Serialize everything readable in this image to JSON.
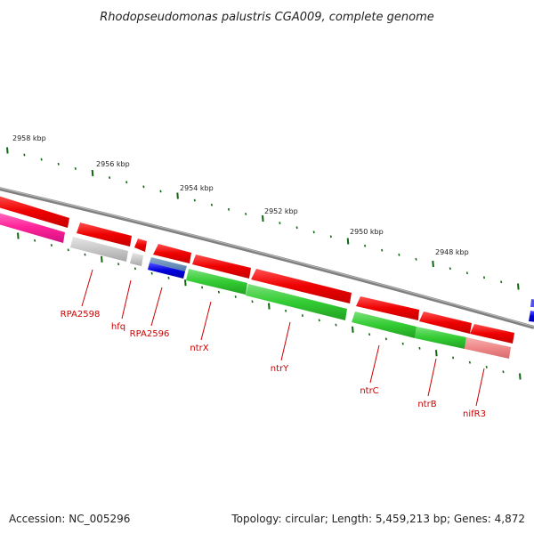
{
  "title": "Rhodopseudomonas palustris CGA009, complete genome",
  "footer": {
    "accession": "Accession: NC_005296",
    "summary": "Topology: circular; Length: 5,459,213 bp; Genes: 4,872"
  },
  "colors": {
    "forward_gene": "#ee0000",
    "reverse_gene": "#33cc33",
    "other_gene": "#c8c8c8",
    "blue_gene": "#0000dd",
    "pink_gene": "#ff2299",
    "salmon_gene": "#ee8888",
    "backbone": "#888888",
    "ticks": "#116611",
    "label": "#cc0000"
  },
  "kbp_labels": [
    "2958 kbp",
    "2956 kbp",
    "2954 kbp",
    "2952 kbp",
    "2950 kbp",
    "2948 kbp"
  ],
  "gene_labels": [
    "RPA2598",
    "hfq",
    "RPA2596",
    "ntrX",
    "ntrY",
    "ntrC",
    "ntrB",
    "nifR3"
  ]
}
